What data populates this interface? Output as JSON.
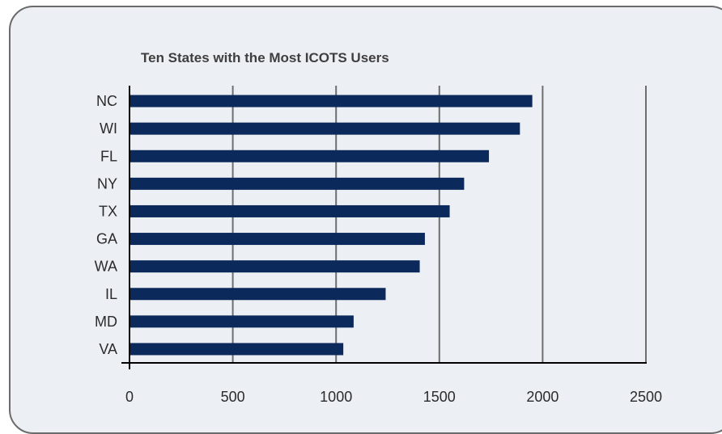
{
  "chart_data": {
    "type": "bar",
    "orientation": "horizontal",
    "title": "Ten States with the Most ICOTS Users",
    "categories": [
      "NC",
      "WI",
      "FL",
      "NY",
      "TX",
      "GA",
      "WA",
      "IL",
      "MD",
      "VA"
    ],
    "values": [
      1950,
      1890,
      1740,
      1620,
      1550,
      1430,
      1405,
      1240,
      1085,
      1035
    ],
    "xticks": [
      "0",
      "500",
      "1000",
      "1500",
      "2000",
      "2500"
    ],
    "xlim": [
      0,
      2500
    ],
    "grid": "vertical",
    "bar_color": "#0b2a5b",
    "xlabel": "",
    "ylabel": ""
  }
}
